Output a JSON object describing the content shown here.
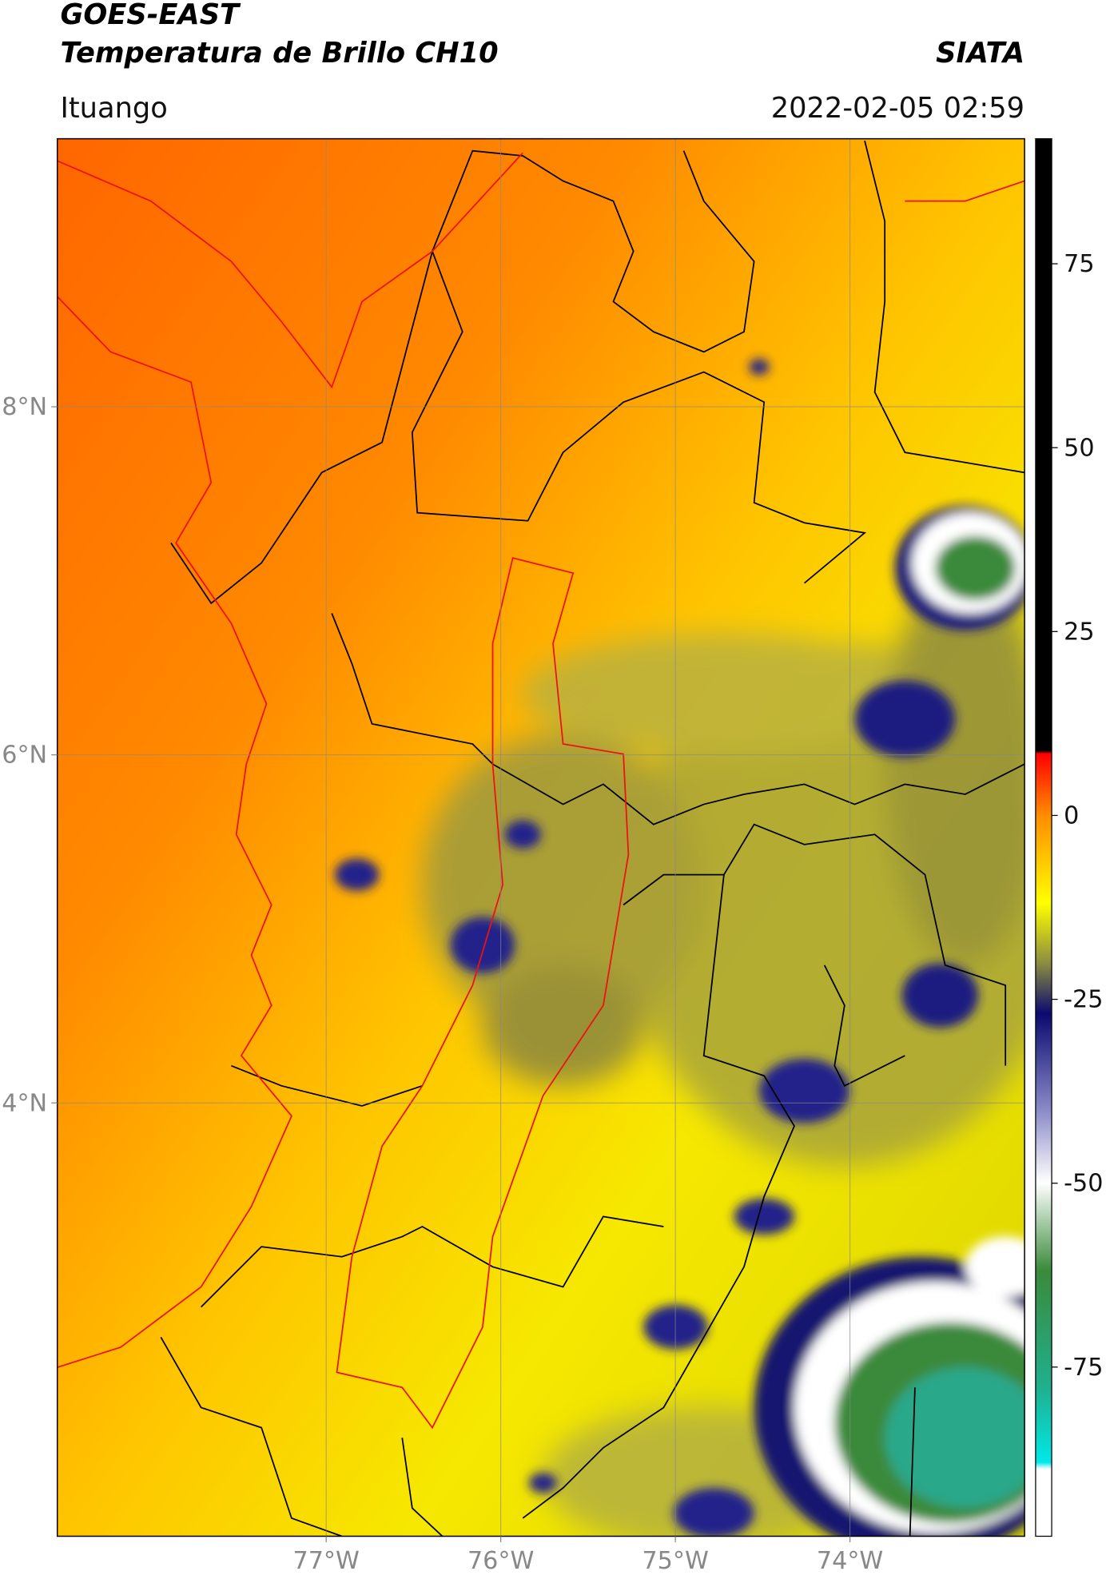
{
  "header": {
    "title": "GOES-EAST",
    "subtitle": "Temperatura de Brillo CH10",
    "brand": "SIATA",
    "region": "Ituango",
    "datetime": "2022-02-05 02:59"
  },
  "map": {
    "lon_range": [
      -78.54,
      -73.0
    ],
    "lat_range": [
      1.51,
      9.54
    ],
    "lon_ticks": [
      {
        "value": -77,
        "label": "77°W"
      },
      {
        "value": -76,
        "label": "76°W"
      },
      {
        "value": -75,
        "label": "75°W"
      },
      {
        "value": -74,
        "label": "74°W"
      }
    ],
    "lat_ticks": [
      {
        "value": 8,
        "label": "8°N"
      },
      {
        "value": 6,
        "label": "6°N"
      },
      {
        "value": 4,
        "label": "4°N"
      }
    ],
    "grid": true
  },
  "colorbar": {
    "range": [
      -98,
      92
    ],
    "ticks": [
      75,
      50,
      25,
      0,
      -25,
      -50,
      -75
    ]
  }
}
